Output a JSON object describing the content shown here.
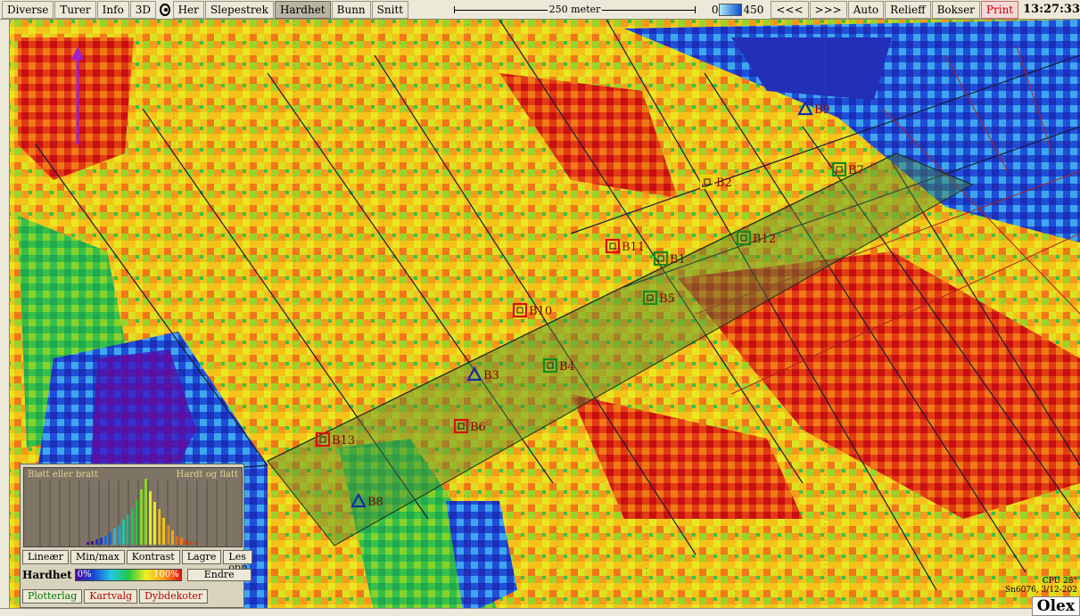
{
  "toolbar": {
    "menu": [
      "Diverse",
      "Turer",
      "Info",
      "3D"
    ],
    "her": "Her",
    "modes": [
      "Slepestrek",
      "Hardhet",
      "Bunn",
      "Snitt"
    ],
    "active_mode": "Hardhet",
    "scale_label": "250 meter",
    "depth_min": "0",
    "depth_max": "450",
    "zoom_out": "<<<",
    "zoom_in": ">>>",
    "right_buttons": [
      "Auto",
      "Relieff",
      "Bokser"
    ],
    "print": "Print",
    "clock": "13:27:33"
  },
  "markers": [
    {
      "id": "B1",
      "shape": "square",
      "color": "#1a8a1a",
      "label_color": "#8a0000"
    },
    {
      "id": "B2",
      "shape": "square",
      "color": "#e8e000",
      "label_color": "#8a0000"
    },
    {
      "id": "B3",
      "shape": "triangle",
      "color": "#1a2aa8",
      "label_color": "#8a0000"
    },
    {
      "id": "B4",
      "shape": "square",
      "color": "#1a8a1a",
      "label_color": "#8a0000"
    },
    {
      "id": "B5",
      "shape": "square",
      "color": "#1a8a1a",
      "label_color": "#8a0000"
    },
    {
      "id": "B6",
      "shape": "square",
      "color": "#d81010",
      "label_color": "#8a0000"
    },
    {
      "id": "B7",
      "shape": "square",
      "color": "#1a8a1a",
      "label_color": "#8a0000"
    },
    {
      "id": "B8",
      "shape": "triangle",
      "color": "#1a2aa8",
      "label_color": "#8a0000"
    },
    {
      "id": "B9",
      "shape": "triangle",
      "color": "#1a2aa8",
      "label_color": "#8a0000"
    },
    {
      "id": "B10",
      "shape": "square",
      "color": "#d81010",
      "label_color": "#8a0000"
    },
    {
      "id": "B11",
      "shape": "square",
      "color": "#d81010",
      "label_color": "#8a0000"
    },
    {
      "id": "B12",
      "shape": "square",
      "color": "#1a8a1a",
      "label_color": "#8a0000"
    },
    {
      "id": "B13",
      "shape": "square",
      "color": "#d81010",
      "label_color": "#8a0000"
    }
  ],
  "panel": {
    "hist_left": "Bløtt eller bratt",
    "hist_right": "Hardt og flatt",
    "buttons": [
      "Lineær",
      "Min/max",
      "Kontrast",
      "Lagre",
      "Les opp"
    ],
    "hardhet_label": "Hardhet",
    "pct_min": "0%",
    "pct_max": "100%",
    "endre": "Endre",
    "bottom_buttons": [
      "Plotterlag",
      "Kartvalg",
      "Dybdekoter"
    ]
  },
  "status": {
    "cpu": "CPU 28°",
    "version": "Sn6076, 3/12-202"
  },
  "brand": "Olex"
}
